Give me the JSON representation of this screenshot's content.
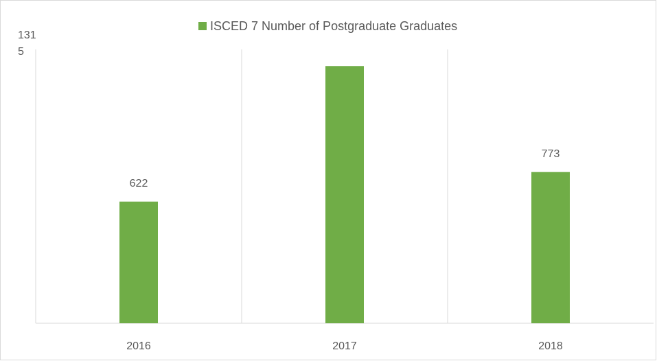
{
  "chart_data": {
    "type": "bar",
    "title": "ISCED 7 Number of Postgraduate Graduates",
    "categories": [
      "2016",
      "2017",
      "2018"
    ],
    "values": [
      622,
      1315,
      773
    ],
    "color": "#70ad47",
    "ylim": [
      0,
      1400
    ]
  }
}
